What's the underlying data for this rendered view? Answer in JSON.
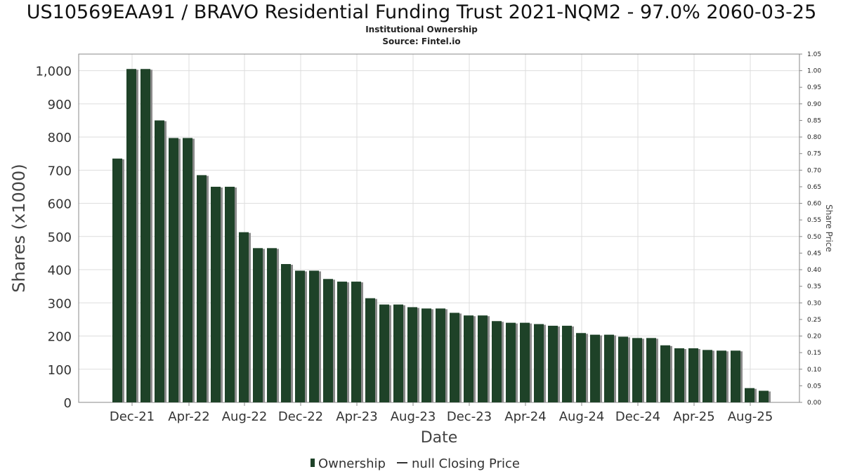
{
  "title": "US10569EAA91 / BRAVO Residential Funding Trust 2021-NQM2 - 97.0% 2060-03-25",
  "subtitle": "Institutional Ownership",
  "source": "Source: Fintel.io",
  "colors": {
    "bar": "#1e4228",
    "bar_shadow": "#8a8a8a",
    "grid": "#dddddd",
    "frame": "#888888"
  },
  "chart_data": {
    "type": "bar",
    "xlabel": "Date",
    "ylabel": "Shares (x1000)",
    "y2label": "Share Price",
    "ylim": [
      0,
      1050
    ],
    "y2lim": [
      0,
      1.05
    ],
    "yticks": [
      "0",
      "100",
      "200",
      "300",
      "400",
      "500",
      "600",
      "700",
      "800",
      "900",
      "1,000"
    ],
    "y2ticks": [
      "0.00",
      "0.05",
      "0.10",
      "0.15",
      "0.20",
      "0.25",
      "0.30",
      "0.35",
      "0.40",
      "0.45",
      "0.50",
      "0.55",
      "0.60",
      "0.65",
      "0.70",
      "0.75",
      "0.80",
      "0.85",
      "0.90",
      "0.95",
      "1.00",
      "1.05"
    ],
    "xtick_labels": [
      "Dec-21",
      "Apr-22",
      "Aug-22",
      "Dec-22",
      "Apr-23",
      "Aug-23",
      "Dec-23",
      "Apr-24",
      "Aug-24",
      "Dec-24",
      "Apr-25",
      "Aug-25"
    ],
    "grid": true,
    "legend_position": "bottom",
    "series": [
      {
        "name": "Ownership",
        "values": [
          735,
          1005,
          1005,
          850,
          797,
          797,
          685,
          650,
          650,
          513,
          465,
          465,
          417,
          397,
          397,
          372,
          364,
          364,
          314,
          295,
          295,
          287,
          283,
          283,
          270,
          262,
          262,
          245,
          240,
          240,
          236,
          231,
          231,
          209,
          204,
          204,
          198,
          194,
          194,
          172,
          163,
          163,
          158,
          156,
          156,
          43,
          35
        ]
      }
    ],
    "legend": [
      "Ownership",
      "null Closing Price"
    ]
  }
}
